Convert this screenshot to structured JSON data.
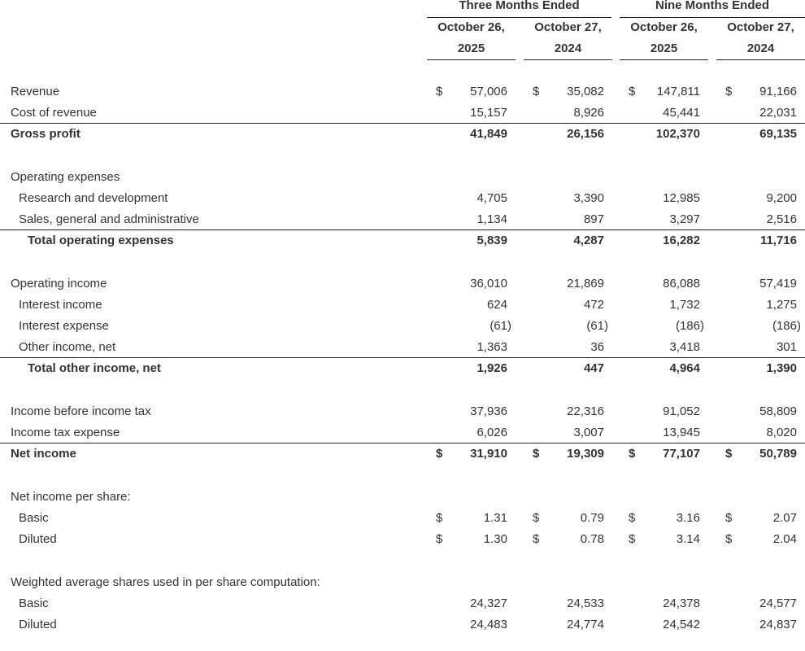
{
  "header": {
    "groups": [
      "Three Months Ended",
      "Nine Months Ended"
    ],
    "columns": [
      {
        "line1": "October 26,",
        "line2": "2025"
      },
      {
        "line1": "October 27,",
        "line2": "2024"
      },
      {
        "line1": "October 26,",
        "line2": "2025"
      },
      {
        "line1": "October 27,",
        "line2": "2024"
      }
    ]
  },
  "rows": [
    {
      "label": "Revenue",
      "level": 0,
      "bold": false,
      "currency": "$",
      "values": [
        "57,006",
        "35,082",
        "147,811",
        "91,166"
      ]
    },
    {
      "label": "Cost of revenue",
      "level": 0,
      "bold": false,
      "values": [
        "15,157",
        "8,926",
        "45,441",
        "22,031"
      ]
    },
    {
      "label": "Gross profit",
      "level": 0,
      "bold": true,
      "rule": true,
      "values": [
        "41,849",
        "26,156",
        "102,370",
        "69,135"
      ]
    },
    {
      "blank": true
    },
    {
      "label": "Operating expenses",
      "level": 0,
      "bold": false,
      "values": []
    },
    {
      "label": "Research and development",
      "level": 1,
      "bold": false,
      "values": [
        "4,705",
        "3,390",
        "12,985",
        "9,200"
      ]
    },
    {
      "label": "Sales, general and administrative",
      "level": 1,
      "bold": false,
      "values": [
        "1,134",
        "897",
        "3,297",
        "2,516"
      ]
    },
    {
      "label": "Total operating expenses",
      "level": 2,
      "bold": true,
      "rule": true,
      "values": [
        "5,839",
        "4,287",
        "16,282",
        "11,716"
      ]
    },
    {
      "blank": true
    },
    {
      "label": "Operating income",
      "level": 0,
      "bold": false,
      "values": [
        "36,010",
        "21,869",
        "86,088",
        "57,419"
      ]
    },
    {
      "label": "Interest income",
      "level": 1,
      "bold": false,
      "values": [
        "624",
        "472",
        "1,732",
        "1,275"
      ]
    },
    {
      "label": "Interest expense",
      "level": 1,
      "bold": false,
      "values": [
        "(61)",
        "(61)",
        "(186)",
        "(186)"
      ]
    },
    {
      "label": "Other income, net",
      "level": 1,
      "bold": false,
      "values": [
        "1,363",
        "36",
        "3,418",
        "301"
      ]
    },
    {
      "label": "Total other income, net",
      "level": 2,
      "bold": true,
      "rule": true,
      "values": [
        "1,926",
        "447",
        "4,964",
        "1,390"
      ]
    },
    {
      "blank": true
    },
    {
      "label": "Income before income tax",
      "level": 0,
      "bold": false,
      "values": [
        "37,936",
        "22,316",
        "91,052",
        "58,809"
      ]
    },
    {
      "label": "Income tax expense",
      "level": 0,
      "bold": false,
      "values": [
        "6,026",
        "3,007",
        "13,945",
        "8,020"
      ]
    },
    {
      "label": "Net income",
      "level": 0,
      "bold": true,
      "rule": true,
      "currency": "$",
      "values": [
        "31,910",
        "19,309",
        "77,107",
        "50,789"
      ]
    },
    {
      "blank": true
    },
    {
      "label": "Net income per share:",
      "level": 0,
      "bold": false,
      "values": []
    },
    {
      "label": "Basic",
      "level": 1,
      "bold": false,
      "currency": "$",
      "values": [
        "1.31",
        "0.79",
        "3.16",
        "2.07"
      ]
    },
    {
      "label": "Diluted",
      "level": 1,
      "bold": false,
      "currency": "$",
      "values": [
        "1.30",
        "0.78",
        "3.14",
        "2.04"
      ]
    },
    {
      "blank": true
    },
    {
      "label": "Weighted average shares used in per share computation:",
      "level": 0,
      "bold": false,
      "values": []
    },
    {
      "label": "Basic",
      "level": 1,
      "bold": false,
      "values": [
        "24,327",
        "24,533",
        "24,378",
        "24,577"
      ]
    },
    {
      "label": "Diluted",
      "level": 1,
      "bold": false,
      "values": [
        "24,483",
        "24,774",
        "24,542",
        "24,837"
      ]
    }
  ]
}
